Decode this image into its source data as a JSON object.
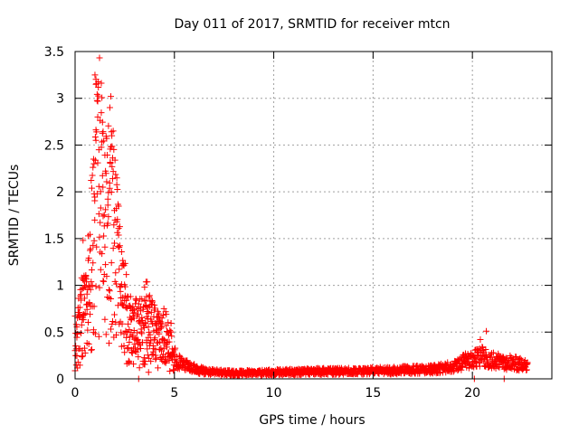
{
  "chart_data": {
    "type": "scatter",
    "title": "Day 011 of 2017, SRMTID for receiver mtcn",
    "xlabel": "GPS time / hours",
    "ylabel": "SRMTID / TECUs",
    "xlim": [
      0,
      24
    ],
    "ylim": [
      0,
      3.5
    ],
    "xticks": [
      0,
      5,
      10,
      15,
      20
    ],
    "yticks": [
      0,
      0.5,
      1,
      1.5,
      2,
      2.5,
      3,
      3.5
    ],
    "xtick_labels": [
      "0",
      "5",
      "10",
      "15",
      "20"
    ],
    "ytick_labels": [
      "0",
      "0.5",
      "1",
      "1.5",
      "2",
      "2.5",
      "3",
      "3.5"
    ],
    "grid": true,
    "marker": "+",
    "color": "#ff0000",
    "series": [
      {
        "name": "SRMTID",
        "envelope": [
          {
            "x": 0.0,
            "y": 0.35
          },
          {
            "x": 0.3,
            "y": 0.55
          },
          {
            "x": 0.6,
            "y": 0.75
          },
          {
            "x": 0.9,
            "y": 1.3
          },
          {
            "x": 1.1,
            "y": 1.9
          },
          {
            "x": 1.3,
            "y": 1.7
          },
          {
            "x": 1.6,
            "y": 1.3
          },
          {
            "x": 1.9,
            "y": 1.6
          },
          {
            "x": 2.2,
            "y": 1.1
          },
          {
            "x": 2.5,
            "y": 0.7
          },
          {
            "x": 2.8,
            "y": 0.5
          },
          {
            "x": 3.2,
            "y": 0.45
          },
          {
            "x": 3.6,
            "y": 0.55
          },
          {
            "x": 4.0,
            "y": 0.45
          },
          {
            "x": 4.4,
            "y": 0.4
          },
          {
            "x": 4.8,
            "y": 0.32
          },
          {
            "x": 5.2,
            "y": 0.18
          },
          {
            "x": 5.8,
            "y": 0.12
          },
          {
            "x": 6.5,
            "y": 0.08
          },
          {
            "x": 8.0,
            "y": 0.06
          },
          {
            "x": 10.0,
            "y": 0.07
          },
          {
            "x": 12.0,
            "y": 0.08
          },
          {
            "x": 14.0,
            "y": 0.08
          },
          {
            "x": 16.0,
            "y": 0.09
          },
          {
            "x": 18.0,
            "y": 0.1
          },
          {
            "x": 19.0,
            "y": 0.13
          },
          {
            "x": 19.8,
            "y": 0.2
          },
          {
            "x": 20.5,
            "y": 0.24
          },
          {
            "x": 21.0,
            "y": 0.2
          },
          {
            "x": 21.5,
            "y": 0.18
          },
          {
            "x": 22.0,
            "y": 0.17
          },
          {
            "x": 22.8,
            "y": 0.14
          }
        ],
        "peaks": [
          {
            "x": 1.0,
            "y": 3.25
          },
          {
            "x": 1.05,
            "y": 3.15
          },
          {
            "x": 1.8,
            "y": 3.02
          },
          {
            "x": 1.75,
            "y": 2.9
          },
          {
            "x": 1.85,
            "y": 2.6
          },
          {
            "x": 1.05,
            "y": 2.55
          },
          {
            "x": 1.2,
            "y": 2.45
          },
          {
            "x": 0.95,
            "y": 2.3
          },
          {
            "x": 1.4,
            "y": 2.05
          },
          {
            "x": 0.4,
            "y": 1.48
          },
          {
            "x": 3.5,
            "y": 0.98
          },
          {
            "x": 3.6,
            "y": 0.88
          },
          {
            "x": 20.7,
            "y": 0.51
          },
          {
            "x": 20.4,
            "y": 0.42
          }
        ],
        "lows": [
          {
            "x": 3.2,
            "y": 0.0
          },
          {
            "x": 3.7,
            "y": 0.07
          },
          {
            "x": 20.1,
            "y": 0.0
          },
          {
            "x": 21.6,
            "y": 0.0
          }
        ]
      }
    ]
  }
}
